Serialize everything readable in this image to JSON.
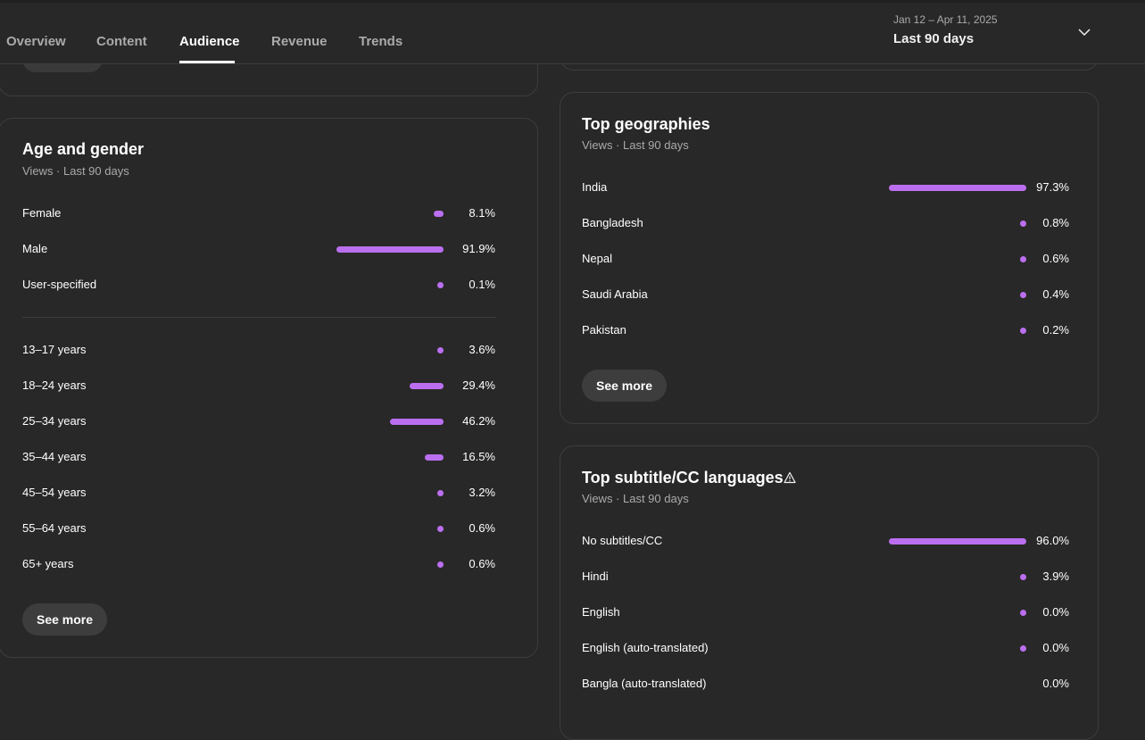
{
  "tabs": [
    {
      "label": "Overview"
    },
    {
      "label": "Content"
    },
    {
      "label": "Audience",
      "active": true
    },
    {
      "label": "Revenue"
    },
    {
      "label": "Trends"
    }
  ],
  "date_range": {
    "range": "Jan 12 – Apr 11, 2025",
    "label": "Last 90 days",
    "icon": "chevron-down-icon"
  },
  "accent_color": "#bb6ff0",
  "age_gender": {
    "title": "Age and gender",
    "subtitle": "Views · Last 90 days",
    "gender": [
      {
        "label": "Female",
        "pct": "8.1%",
        "value": 8.1
      },
      {
        "label": "Male",
        "pct": "91.9%",
        "value": 91.9
      },
      {
        "label": "User-specified",
        "pct": "0.1%",
        "value": 0.1
      }
    ],
    "ages": [
      {
        "label": "13–17 years",
        "pct": "3.6%",
        "value": 3.6
      },
      {
        "label": "18–24 years",
        "pct": "29.4%",
        "value": 29.4
      },
      {
        "label": "25–34 years",
        "pct": "46.2%",
        "value": 46.2
      },
      {
        "label": "35–44 years",
        "pct": "16.5%",
        "value": 16.5
      },
      {
        "label": "45–54 years",
        "pct": "3.2%",
        "value": 3.2
      },
      {
        "label": "55–64 years",
        "pct": "0.6%",
        "value": 0.6
      },
      {
        "label": "65+ years",
        "pct": "0.6%",
        "value": 0.6
      }
    ],
    "see_more": "See more"
  },
  "geographies": {
    "title": "Top geographies",
    "subtitle": "Views · Last 90 days",
    "rows": [
      {
        "label": "India",
        "pct": "97.3%",
        "value": 97.3
      },
      {
        "label": "Bangladesh",
        "pct": "0.8%",
        "value": 0.8
      },
      {
        "label": "Nepal",
        "pct": "0.6%",
        "value": 0.6
      },
      {
        "label": "Saudi Arabia",
        "pct": "0.4%",
        "value": 0.4
      },
      {
        "label": "Pakistan",
        "pct": "0.2%",
        "value": 0.2
      }
    ],
    "see_more": "See more"
  },
  "subtitles": {
    "title": "Top subtitle/CC languages",
    "warning_icon": "warning-icon",
    "subtitle": "Views · Last 90 days",
    "rows": [
      {
        "label": "No subtitles/CC",
        "pct": "96.0%",
        "value": 96.0
      },
      {
        "label": "Hindi",
        "pct": "3.9%",
        "value": 3.9
      },
      {
        "label": "English",
        "pct": "0.0%",
        "value": 0.0
      },
      {
        "label": "English (auto-translated)",
        "pct": "0.0%",
        "value": 0.0
      },
      {
        "label": "Bangla (auto-translated)",
        "pct": "0.0%",
        "value": 0.0,
        "no_bar": true
      }
    ]
  }
}
